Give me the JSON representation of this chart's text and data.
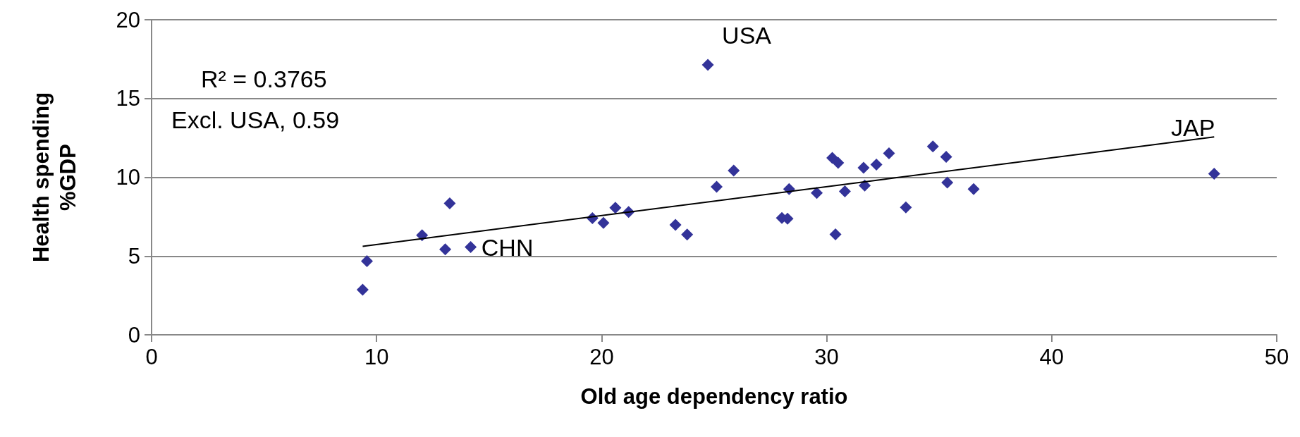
{
  "chart_data": {
    "type": "scatter",
    "xlabel": "Old age dependency ratio",
    "ylabel": "Health spending %GDP",
    "xlim": [
      0,
      50
    ],
    "xticks": [
      0,
      10,
      20,
      30,
      40,
      50
    ],
    "ylim": [
      0,
      20
    ],
    "yticks": [
      0,
      5,
      10,
      15,
      20
    ],
    "grid": "y",
    "marker": "diamond",
    "series": [
      {
        "color": "#333399",
        "x": [
          9.38,
          9.57,
          12.02,
          13.25,
          13.05,
          14.18,
          19.59,
          20.08,
          20.61,
          21.2,
          23.28,
          23.8,
          24.72,
          25.11,
          25.87,
          28.01,
          28.26,
          28.33,
          29.56,
          30.25,
          30.51,
          30.39,
          30.81,
          31.64,
          31.69,
          32.21,
          32.77,
          33.52,
          34.72,
          35.31,
          35.36,
          36.53,
          47.22
        ],
        "values": [
          2.86,
          4.68,
          6.32,
          8.34,
          5.43,
          5.57,
          7.4,
          7.1,
          8.06,
          7.8,
          6.98,
          6.37,
          17.14,
          9.4,
          10.43,
          7.42,
          7.37,
          9.25,
          9.01,
          11.23,
          10.92,
          6.38,
          9.11,
          10.6,
          9.47,
          10.8,
          11.52,
          8.09,
          11.96,
          11.3,
          9.66,
          9.25,
          10.22
        ]
      },
      {
        "type": "line",
        "color": "#000000",
        "marker": "none",
        "x": [
          9.38,
          47.22
        ],
        "values": [
          5.62,
          12.56
        ]
      }
    ],
    "annotations": [
      "R² = 0.3765",
      "Excl. USA, 0.59",
      {
        "text": "USA",
        "x": 24.72,
        "y": 17.14
      },
      {
        "text": "CHN",
        "x": 14.18,
        "y": 5.57
      },
      {
        "text": "JAP",
        "x": 47.22,
        "y": 10.22
      }
    ]
  }
}
